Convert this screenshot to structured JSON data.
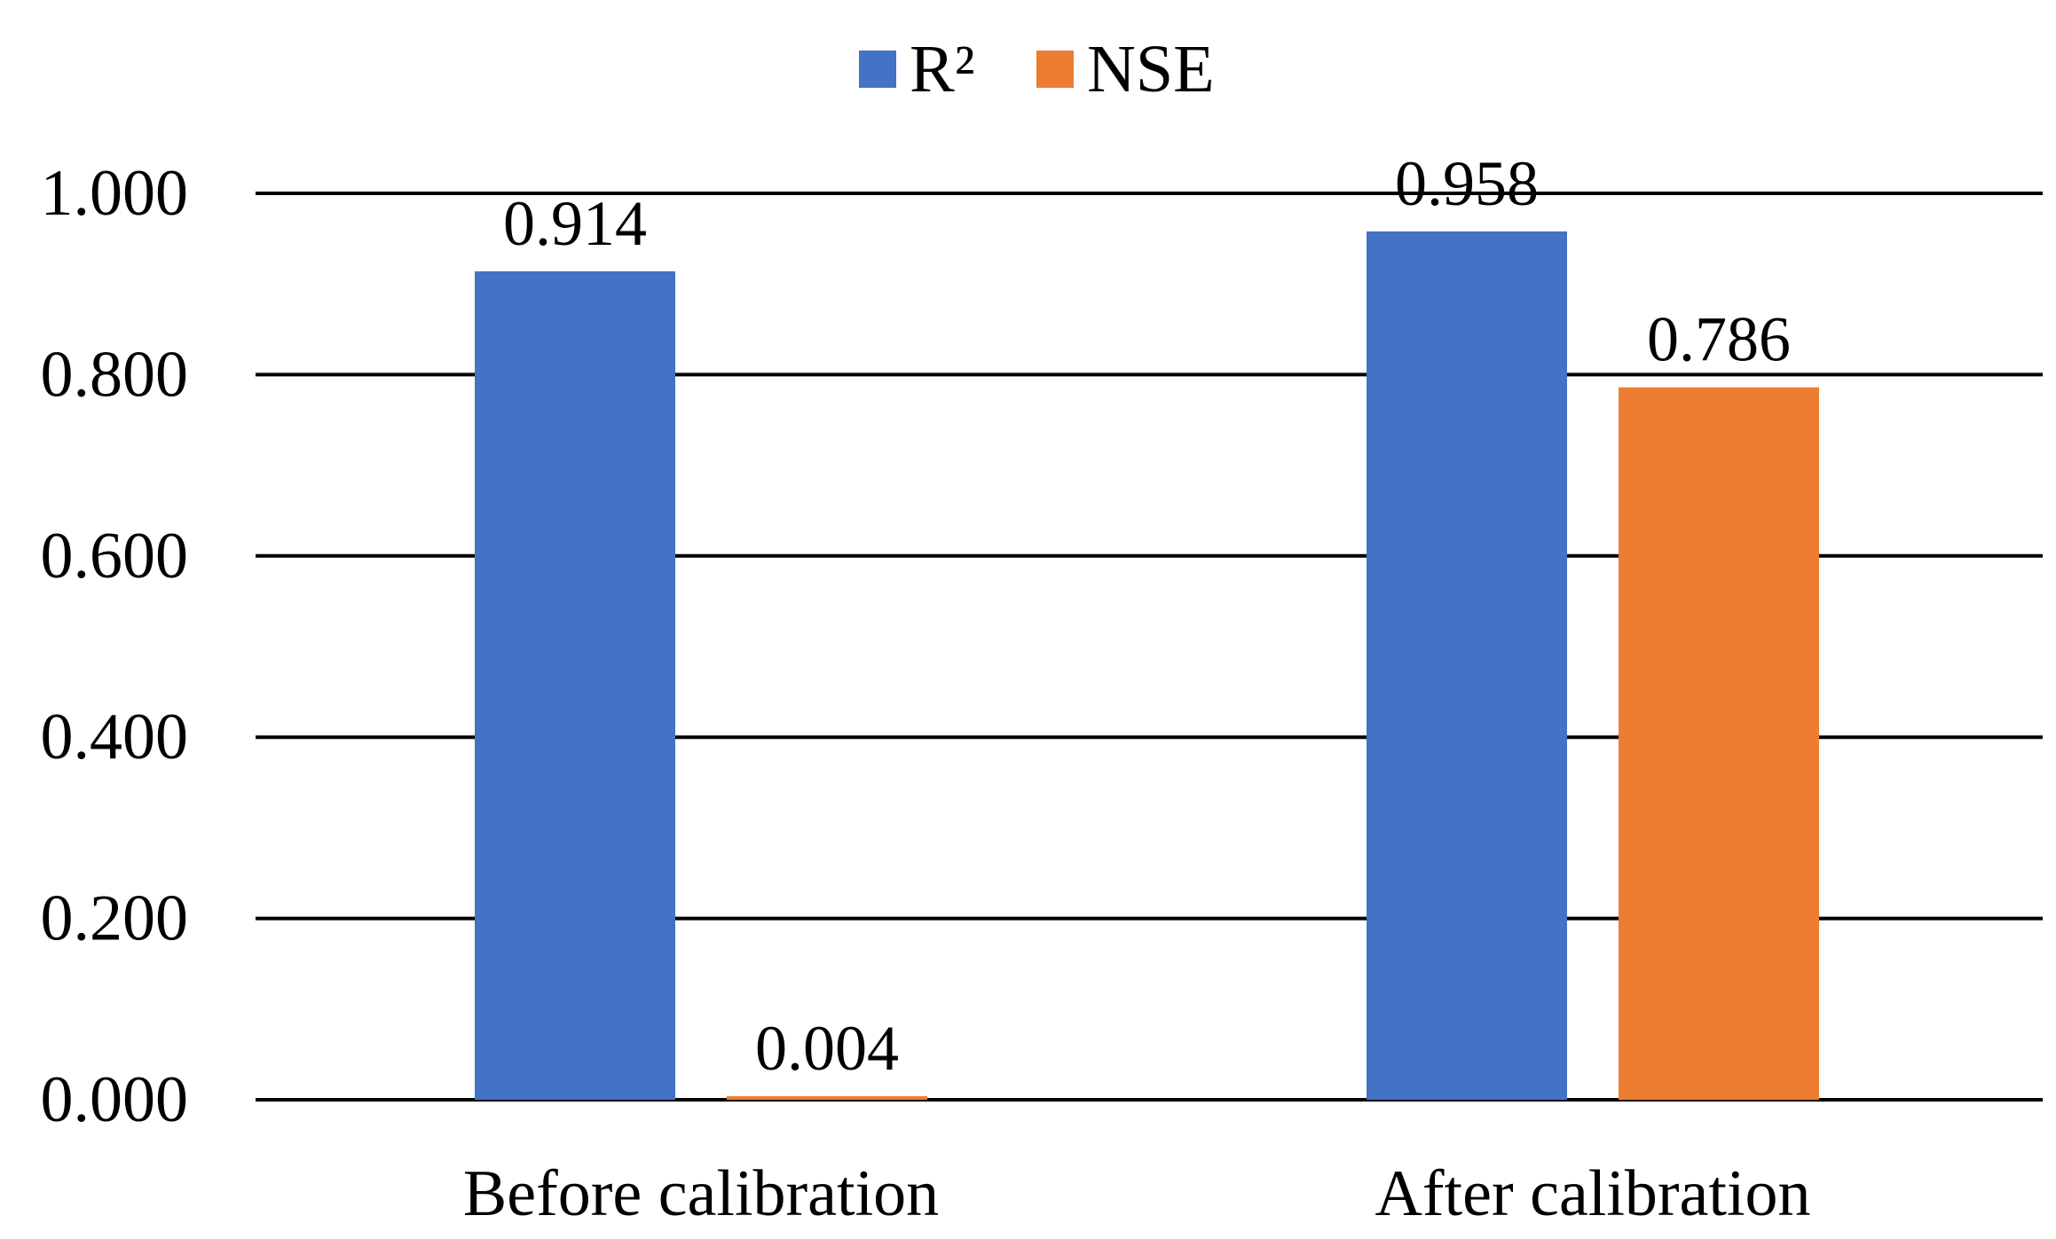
{
  "chart_data": {
    "type": "bar",
    "title": "",
    "xlabel": "",
    "ylabel": "",
    "categories": [
      "Before calibration",
      "After calibration"
    ],
    "series": [
      {
        "name": "R²",
        "color": "#4472C4",
        "values": [
          0.914,
          0.958
        ],
        "labels": [
          "0.914",
          "0.958"
        ]
      },
      {
        "name": "NSE",
        "color": "#ED7D31",
        "values": [
          0.004,
          0.786
        ],
        "labels": [
          "0.004",
          "0.786"
        ]
      }
    ],
    "ylim": [
      0,
      1
    ],
    "yticks": [
      "0.000",
      "0.200",
      "0.400",
      "0.600",
      "0.800",
      "1.000"
    ],
    "grid": true,
    "legend_position": "top-center"
  }
}
